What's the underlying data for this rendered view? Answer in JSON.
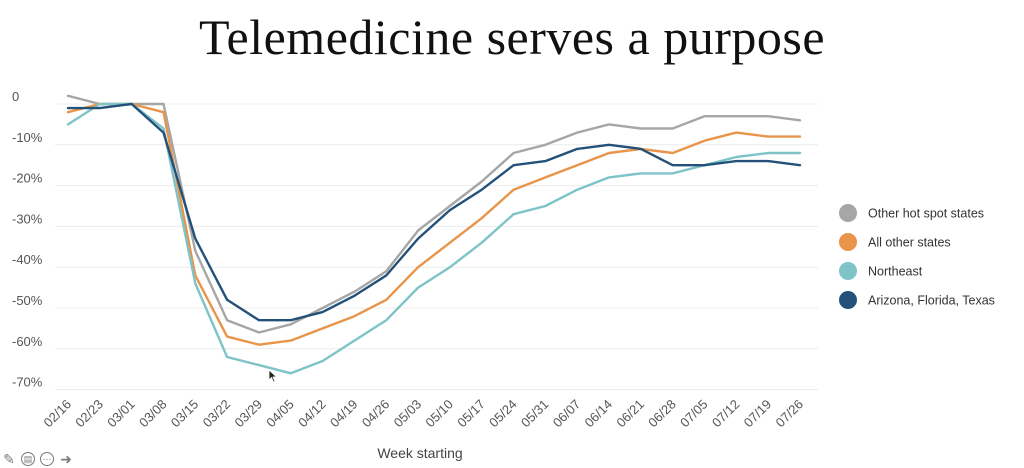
{
  "slide": {
    "title": "Telemedicine serves a purpose"
  },
  "chart_data": {
    "type": "line",
    "title": "",
    "xlabel": "Week starting",
    "ylabel": "",
    "ylim": [
      -73,
      2
    ],
    "yticks": [
      0,
      -10,
      -20,
      -30,
      -40,
      -50,
      -60,
      -70
    ],
    "ytick_labels": [
      "0",
      "-10%",
      "-20%",
      "-30%",
      "-40%",
      "-50%",
      "-60%",
      "-70%"
    ],
    "grid": true,
    "legend_position": "right",
    "categories": [
      "02/16",
      "02/23",
      "03/01",
      "03/08",
      "03/15",
      "03/22",
      "03/29",
      "04/05",
      "04/12",
      "04/19",
      "04/26",
      "05/03",
      "05/10",
      "05/17",
      "05/24",
      "05/31",
      "06/07",
      "06/14",
      "06/21",
      "06/28",
      "07/05",
      "07/12",
      "07/19",
      "07/26"
    ],
    "series": [
      {
        "name": "Other hot spot states",
        "color": "#a6a6a6",
        "values": [
          2,
          0,
          0,
          0,
          -36,
          -53,
          -56,
          -54,
          -50,
          -46,
          -41,
          -31,
          -25,
          -19,
          -12,
          -10,
          -7,
          -5,
          -6,
          -6,
          -3,
          -3,
          -3,
          -4
        ]
      },
      {
        "name": "All other states",
        "color": "#e8954a",
        "values": [
          -2,
          0,
          0,
          -2,
          -42,
          -57,
          -59,
          -58,
          -55,
          -52,
          -48,
          -40,
          -34,
          -28,
          -21,
          -18,
          -15,
          -12,
          -11,
          -12,
          -9,
          -7,
          -8,
          -8
        ]
      },
      {
        "name": "Northeast",
        "color": "#7ec3c8",
        "values": [
          -5,
          0,
          0,
          -6,
          -44,
          -62,
          -64,
          -66,
          -63,
          -58,
          -53,
          -45,
          -40,
          -34,
          -27,
          -25,
          -21,
          -18,
          -17,
          -17,
          -15,
          -13,
          -12,
          -12
        ]
      },
      {
        "name": "Arizona, Florida, Texas",
        "color": "#245179",
        "values": [
          -1,
          -1,
          0,
          -7,
          -33,
          -48,
          -53,
          -53,
          -51,
          -47,
          -42,
          -33,
          -26,
          -21,
          -15,
          -14,
          -11,
          -10,
          -11,
          -15,
          -15,
          -14,
          -14,
          -15
        ]
      }
    ]
  },
  "toolbar": {
    "icons": [
      "pencil-icon",
      "subtitles-icon",
      "more-icon",
      "next-arrow-icon"
    ]
  }
}
